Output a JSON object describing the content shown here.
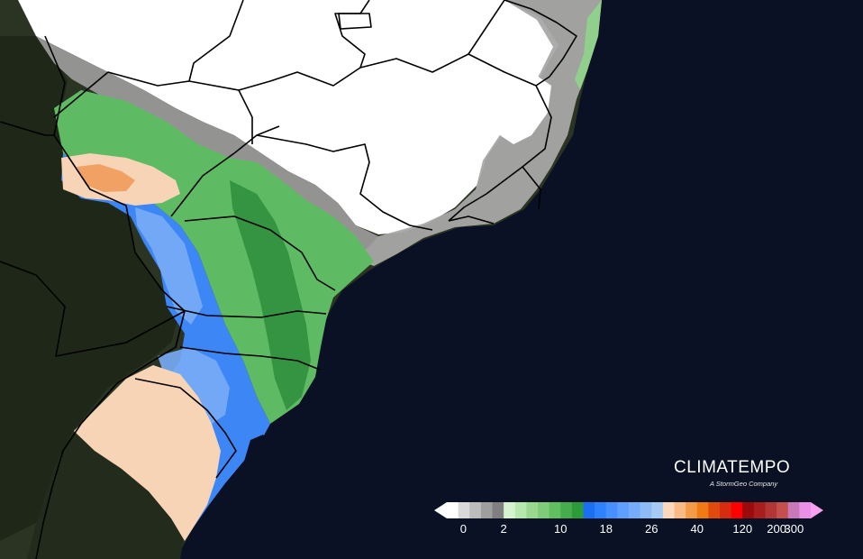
{
  "brand": {
    "name": "CLIMATEMPO",
    "tagline": "A StormGeo Company"
  },
  "legend": {
    "labels": [
      "0",
      "2",
      "10",
      "18",
      "26",
      "40",
      "120",
      "200",
      "300"
    ],
    "colors": [
      "#ffffff",
      "#d9d9d9",
      "#bcbcbc",
      "#9e9e9e",
      "#7f7f7f",
      "#d5f3cf",
      "#b6e8ad",
      "#9ad890",
      "#7fcd79",
      "#62bf61",
      "#45ad4c",
      "#2c9b3a",
      "#1b6ff2",
      "#2f82ff",
      "#4890ff",
      "#5e9fff",
      "#76adfb",
      "#8dbbf6",
      "#a6cbf3",
      "#fad8bd",
      "#f9bb85",
      "#f59b45",
      "#f07b14",
      "#e04a0d",
      "#d82c10",
      "#ff0000",
      "#9c0b0b",
      "#a81e1e",
      "#b23636",
      "#c54f4f",
      "#c978b8",
      "#ea91e5"
    ],
    "left_arrow_color": "#ffffff",
    "right_arrow_color": "#f9a1f1"
  },
  "map": {
    "colors": {
      "ocean": "#0a1124",
      "land": "#2b3422",
      "land_dark": "#1e261a",
      "no_rain": "#ffffff",
      "trace": "#a3a3a3",
      "light_green": "#8fd58a",
      "green": "#4fb35b",
      "dark_green": "#2e8d3c",
      "blue": "#3c86f5",
      "light_blue": "#78acf6",
      "peach": "#f7d4b6",
      "orange": "#f1a163",
      "border": "#000000"
    }
  }
}
